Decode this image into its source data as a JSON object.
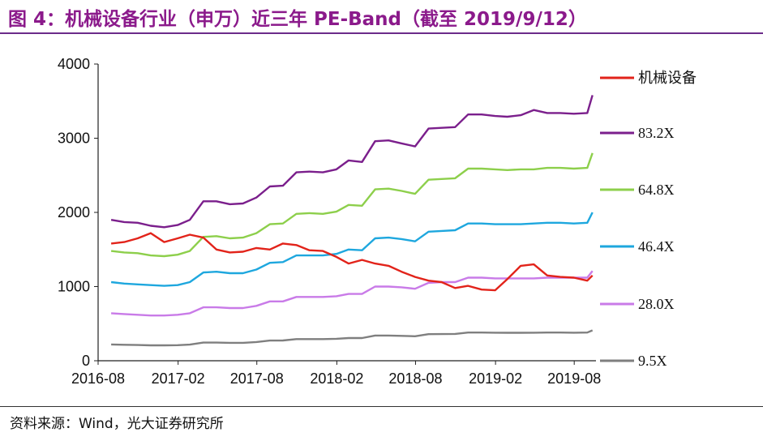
{
  "title": "图 4：机械设备行业（申万）近三年 PE-Band（截至 2019/9/12）",
  "source": "资料来源：Wind，光大证券研究所",
  "chart_data": {
    "type": "line",
    "title": "",
    "xlabel": "",
    "ylabel": "",
    "ylim": [
      0,
      4000
    ],
    "yticks": [
      "0",
      "1000",
      "2000",
      "3000",
      "4000"
    ],
    "xticks": [
      "2016-08",
      "2017-02",
      "2017-08",
      "2018-02",
      "2018-08",
      "2019-02",
      "2019-08"
    ],
    "grid": false,
    "legend_position": "right",
    "x": [
      "2016-08-31",
      "2016-09-30",
      "2016-10-31",
      "2016-11-30",
      "2016-12-31",
      "2017-01-31",
      "2017-02-28",
      "2017-03-31",
      "2017-04-30",
      "2017-05-31",
      "2017-06-30",
      "2017-07-31",
      "2017-08-31",
      "2017-09-30",
      "2017-10-31",
      "2017-11-30",
      "2017-12-31",
      "2018-01-31",
      "2018-02-28",
      "2018-03-31",
      "2018-04-30",
      "2018-05-31",
      "2018-06-30",
      "2018-07-31",
      "2018-08-31",
      "2018-09-30",
      "2018-10-31",
      "2018-11-30",
      "2018-12-31",
      "2019-01-31",
      "2019-02-28",
      "2019-03-31",
      "2019-04-30",
      "2019-05-31",
      "2019-06-30",
      "2019-07-31",
      "2019-08-31",
      "2019-09-12"
    ],
    "series": [
      {
        "name": "机械设备",
        "color": "#E2231A",
        "values": [
          1580,
          1600,
          1650,
          1720,
          1600,
          1650,
          1700,
          1660,
          1500,
          1460,
          1470,
          1520,
          1500,
          1580,
          1560,
          1490,
          1480,
          1400,
          1310,
          1360,
          1310,
          1280,
          1200,
          1130,
          1080,
          1060,
          980,
          1010,
          960,
          950,
          1100,
          1280,
          1300,
          1150,
          1130,
          1120,
          1080,
          1150
        ]
      },
      {
        "name": "83.2X",
        "color": "#7B1F8C",
        "values": [
          1900,
          1870,
          1860,
          1820,
          1800,
          1830,
          1900,
          2150,
          2150,
          2110,
          2120,
          2200,
          2350,
          2360,
          2540,
          2550,
          2540,
          2580,
          2700,
          2680,
          2960,
          2970,
          2930,
          2890,
          3130,
          3140,
          3150,
          3320,
          3320,
          3300,
          3290,
          3310,
          3380,
          3340,
          3340,
          3330,
          3340,
          3580
        ]
      },
      {
        "name": "64.8X",
        "color": "#8DCF4B",
        "values": [
          1480,
          1460,
          1450,
          1420,
          1410,
          1430,
          1480,
          1670,
          1680,
          1650,
          1660,
          1720,
          1840,
          1850,
          1980,
          1990,
          1980,
          2010,
          2100,
          2090,
          2310,
          2320,
          2290,
          2250,
          2440,
          2450,
          2460,
          2590,
          2590,
          2580,
          2570,
          2580,
          2580,
          2600,
          2600,
          2590,
          2600,
          2800
        ]
      },
      {
        "name": "46.4X",
        "color": "#1EA7DE",
        "values": [
          1060,
          1040,
          1030,
          1020,
          1010,
          1020,
          1060,
          1190,
          1200,
          1180,
          1180,
          1230,
          1320,
          1330,
          1420,
          1420,
          1420,
          1440,
          1500,
          1490,
          1650,
          1660,
          1640,
          1610,
          1740,
          1750,
          1760,
          1850,
          1850,
          1840,
          1840,
          1840,
          1850,
          1860,
          1860,
          1850,
          1860,
          2000
        ]
      },
      {
        "name": "28.0X",
        "color": "#C97BE8",
        "values": [
          640,
          630,
          620,
          610,
          610,
          620,
          640,
          720,
          720,
          710,
          710,
          740,
          800,
          800,
          860,
          860,
          860,
          870,
          900,
          900,
          1000,
          1000,
          990,
          970,
          1050,
          1060,
          1060,
          1120,
          1120,
          1110,
          1110,
          1110,
          1110,
          1120,
          1120,
          1120,
          1120,
          1210
        ]
      },
      {
        "name": "9.5X",
        "color": "#7F7F7F",
        "values": [
          220,
          215,
          212,
          208,
          208,
          210,
          218,
          245,
          245,
          242,
          242,
          252,
          272,
          273,
          292,
          292,
          292,
          296,
          306,
          306,
          340,
          340,
          336,
          330,
          358,
          360,
          362,
          380,
          380,
          378,
          377,
          377,
          378,
          380,
          380,
          378,
          380,
          410
        ]
      }
    ]
  }
}
